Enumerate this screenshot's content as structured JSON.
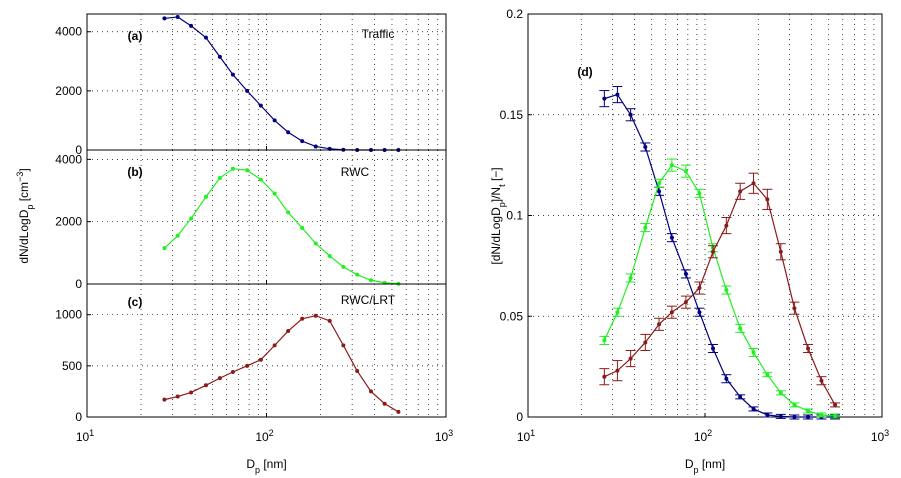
{
  "chart_data": [
    {
      "type": "line",
      "log_x": true,
      "grid": true,
      "show_xtick_labels": false,
      "panel_label": "(a)",
      "annotation": "Traffic",
      "x": [
        27,
        32,
        38,
        46,
        55,
        65,
        78,
        93,
        111,
        132,
        158,
        188,
        225,
        268,
        320,
        382,
        455,
        543
      ],
      "xlim": [
        10,
        1000
      ],
      "xticks": [
        {
          "value": 10,
          "label": "10",
          "exponent": "1"
        },
        {
          "value": 100,
          "label": "10",
          "exponent": "2"
        },
        {
          "value": 1000,
          "label": "10",
          "exponent": "3"
        }
      ],
      "ylim": [
        0,
        4600
      ],
      "yticks": [
        0,
        2000,
        4000
      ],
      "series": [
        {
          "color": "#000080",
          "values": [
            4450,
            4500,
            4200,
            3800,
            3150,
            2550,
            2000,
            1500,
            1000,
            600,
            300,
            120,
            40,
            10,
            0,
            0,
            0,
            0
          ]
        }
      ]
    },
    {
      "type": "line",
      "log_x": true,
      "grid": true,
      "show_xtick_labels": false,
      "panel_label": "(b)",
      "annotation": "RWC",
      "ylabel": [
        {
          "text": "dN/dLogD",
          "style": "normal"
        },
        {
          "text": "p",
          "style": "sub"
        },
        {
          "text": " [cm",
          "style": "normal"
        },
        {
          "text": "−3",
          "style": "sup"
        },
        {
          "text": "]",
          "style": "normal"
        }
      ],
      "x": [
        27,
        32,
        38,
        46,
        55,
        65,
        78,
        93,
        111,
        132,
        158,
        188,
        225,
        268,
        320,
        382,
        455,
        543
      ],
      "xlim": [
        10,
        1000
      ],
      "xticks": [
        {
          "value": 10,
          "label": "10",
          "exponent": "1"
        },
        {
          "value": 100,
          "label": "10",
          "exponent": "2"
        },
        {
          "value": 1000,
          "label": "10",
          "exponent": "3"
        }
      ],
      "ylim": [
        0,
        4300
      ],
      "yticks": [
        0,
        2000,
        4000
      ],
      "series": [
        {
          "color": "#22ee22",
          "values": [
            1150,
            1550,
            2100,
            2800,
            3400,
            3700,
            3650,
            3350,
            2900,
            2300,
            1800,
            1300,
            900,
            550,
            300,
            120,
            40,
            10
          ]
        }
      ]
    },
    {
      "type": "line",
      "log_x": true,
      "grid": true,
      "show_xtick_labels": true,
      "panel_label": "(c)",
      "annotation": "RWC/LRT",
      "xlabel": [
        {
          "text": "D",
          "style": "normal"
        },
        {
          "text": "p",
          "style": "sub"
        },
        {
          "text": " [nm]",
          "style": "normal"
        }
      ],
      "x": [
        27,
        32,
        38,
        46,
        55,
        65,
        78,
        93,
        111,
        132,
        158,
        188,
        225,
        268,
        320,
        382,
        455,
        543
      ],
      "xlim": [
        10,
        1000
      ],
      "xticks": [
        {
          "value": 10,
          "label": "10",
          "exponent": "1"
        },
        {
          "value": 100,
          "label": "10",
          "exponent": "2"
        },
        {
          "value": 1000,
          "label": "10",
          "exponent": "3"
        }
      ],
      "ylim": [
        0,
        1300
      ],
      "yticks": [
        0,
        500,
        1000
      ],
      "series": [
        {
          "color": "#8b1a1a",
          "values": [
            170,
            200,
            240,
            310,
            380,
            440,
            500,
            560,
            700,
            840,
            960,
            990,
            940,
            700,
            450,
            250,
            130,
            50
          ]
        }
      ]
    },
    {
      "type": "line",
      "log_x": true,
      "grid": true,
      "show_xtick_labels": true,
      "panel_label": "(d)",
      "xlabel": [
        {
          "text": "D",
          "style": "normal"
        },
        {
          "text": "p",
          "style": "sub"
        },
        {
          "text": " [nm]",
          "style": "normal"
        }
      ],
      "ylabel": [
        {
          "text": "[dN/dLogD",
          "style": "normal"
        },
        {
          "text": "p",
          "style": "sub"
        },
        {
          "text": "]/N",
          "style": "normal"
        },
        {
          "text": "t",
          "style": "sub"
        },
        {
          "text": " [−]",
          "style": "normal"
        }
      ],
      "x": [
        27,
        32,
        38,
        46,
        55,
        65,
        78,
        93,
        111,
        132,
        158,
        188,
        225,
        268,
        320,
        382,
        455,
        543
      ],
      "xlim": [
        10,
        1000
      ],
      "xticks": [
        {
          "value": 10,
          "label": "10",
          "exponent": "1"
        },
        {
          "value": 100,
          "label": "10",
          "exponent": "2"
        },
        {
          "value": 1000,
          "label": "10",
          "exponent": "3"
        }
      ],
      "ylim": [
        0,
        0.2
      ],
      "yticks": [
        0,
        0.05,
        0.1,
        0.15,
        0.2
      ],
      "series": [
        {
          "color": "#000080",
          "values": [
            0.158,
            0.16,
            0.15,
            0.134,
            0.112,
            0.089,
            0.071,
            0.052,
            0.034,
            0.019,
            0.01,
            0.004,
            0.001,
            0.0003,
            0,
            0,
            0,
            0
          ],
          "errors": [
            0.004,
            0.004,
            0.003,
            0.002,
            0.002,
            0.002,
            0.002,
            0.002,
            0.002,
            0.002,
            0.001,
            0.001,
            0.001,
            0.001,
            0.001,
            0.001,
            0.001,
            0.001
          ]
        },
        {
          "color": "#22ee22",
          "values": [
            0.038,
            0.052,
            0.069,
            0.094,
            0.116,
            0.125,
            0.122,
            0.111,
            0.084,
            0.063,
            0.044,
            0.032,
            0.021,
            0.012,
            0.006,
            0.003,
            0.001,
            0.0005
          ],
          "errors": [
            0.002,
            0.002,
            0.002,
            0.002,
            0.002,
            0.003,
            0.003,
            0.002,
            0.002,
            0.002,
            0.002,
            0.002,
            0.001,
            0.001,
            0.001,
            0.001,
            0.001,
            0.001
          ]
        },
        {
          "color": "#8b1a1a",
          "values": [
            0.02,
            0.023,
            0.029,
            0.037,
            0.046,
            0.052,
            0.057,
            0.064,
            0.082,
            0.095,
            0.112,
            0.116,
            0.108,
            0.082,
            0.054,
            0.034,
            0.018,
            0.006
          ],
          "errors": [
            0.004,
            0.005,
            0.004,
            0.004,
            0.003,
            0.003,
            0.003,
            0.003,
            0.003,
            0.004,
            0.004,
            0.005,
            0.005,
            0.004,
            0.003,
            0.002,
            0.002,
            0.001
          ]
        }
      ]
    }
  ]
}
